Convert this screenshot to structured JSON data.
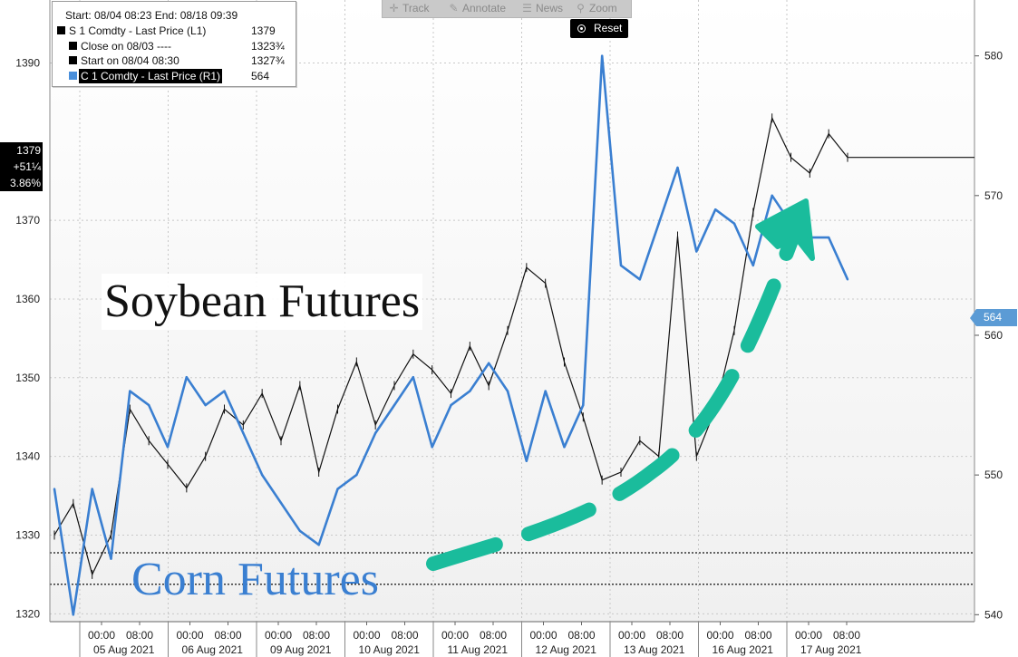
{
  "legend": {
    "header": "Start: 08/04 08:23 End: 08/18 09:39",
    "rows": [
      {
        "label": "S 1 Comdty - Last Price (L1)",
        "value": "1379",
        "color": "#000000"
      },
      {
        "label": "Close on 08/03 ----",
        "value": "1323¾",
        "color": "#000000"
      },
      {
        "label": "Start on 08/04 08:30",
        "value": "1327¾",
        "color": "#000000"
      },
      {
        "label": "C 1 Comdty - Last Price (R1)",
        "value": "564",
        "color": "#4a8fdb"
      }
    ]
  },
  "toolbar": {
    "items": [
      {
        "label": "Track",
        "icon": "crosshair-icon"
      },
      {
        "label": "Annotate",
        "icon": "pencil-icon"
      },
      {
        "label": "News",
        "icon": "news-icon"
      },
      {
        "label": "Zoom",
        "icon": "magnifier-icon"
      }
    ],
    "reset_label": "Reset"
  },
  "last_price_box": {
    "price": "1379",
    "change": "+51¼",
    "pct": "3.86%"
  },
  "right_tag": "564",
  "annotations": {
    "soybean": "Soybean Futures",
    "corn": "Corn Futures"
  },
  "colors": {
    "soybean": "#111111",
    "corn": "#3a7fd1",
    "arrow": "#1abc9c",
    "grid": "#c8c8c8"
  },
  "chart_data": {
    "type": "line",
    "x_axis": {
      "tick_labels": [
        "00:00",
        "08:00",
        "00:00",
        "08:00",
        "00:00",
        "08:00",
        "00:00",
        "08:00",
        "00:00",
        "08:00",
        "00:00",
        "08:00",
        "00:00",
        "08:00",
        "00:00",
        "08:00",
        "00:00",
        "08:00"
      ],
      "day_labels": [
        "05 Aug 2021",
        "06 Aug 2021",
        "09 Aug 2021",
        "10 Aug 2021",
        "11 Aug 2021",
        "12 Aug 2021",
        "13 Aug 2021",
        "16 Aug 2021",
        "17 Aug 2021"
      ]
    },
    "y_left": {
      "ticks": [
        1320,
        1330,
        1340,
        1350,
        1360,
        1370,
        1390
      ],
      "range": [
        1319,
        1398
      ]
    },
    "y_right": {
      "ticks": [
        540,
        550,
        560,
        570,
        580
      ],
      "range": [
        539.5,
        584
      ]
    },
    "reference_lines_left": [
      {
        "value": 1327.75
      },
      {
        "value": 1323.75
      }
    ],
    "series": [
      {
        "name": "S 1 Comdty - Last Price (L1)",
        "axis": "left",
        "x": [
          0,
          0.2,
          0.4,
          0.6,
          0.8,
          1,
          1.2,
          1.4,
          1.6,
          1.8,
          2,
          2.2,
          2.4,
          2.6,
          2.8,
          3,
          3.2,
          3.4,
          3.6,
          3.8,
          4,
          4.2,
          4.4,
          4.6,
          4.8,
          5,
          5.2,
          5.4,
          5.6,
          5.8,
          6,
          6.2,
          6.4,
          6.6,
          6.8,
          7,
          7.2,
          7.4,
          7.6,
          7.8,
          8,
          8.2,
          8.4
        ],
        "values": [
          1330,
          1334,
          1325,
          1330,
          1346,
          1342,
          1339,
          1336,
          1340,
          1346,
          1344,
          1348,
          1342,
          1349,
          1338,
          1346,
          1352,
          1344,
          1349,
          1353,
          1351,
          1348,
          1354,
          1349,
          1356,
          1364,
          1362,
          1352,
          1345,
          1337,
          1338,
          1342,
          1340,
          1368,
          1340,
          1346,
          1356,
          1371,
          1383,
          1378,
          1376,
          1381,
          1378
        ]
      },
      {
        "name": "C 1 Comdty - Last Price (R1)",
        "axis": "right",
        "x": [
          0,
          0.2,
          0.4,
          0.6,
          0.8,
          1,
          1.2,
          1.4,
          1.6,
          1.8,
          2,
          2.2,
          2.4,
          2.6,
          2.8,
          3,
          3.2,
          3.4,
          3.6,
          3.8,
          4,
          4.2,
          4.4,
          4.6,
          4.8,
          5,
          5.2,
          5.4,
          5.6,
          5.8,
          6,
          6.2,
          6.4,
          6.6,
          6.8,
          7,
          7.2,
          7.4,
          7.6,
          7.8,
          8,
          8.2,
          8.4
        ],
        "values": [
          549,
          540,
          549,
          544,
          556,
          555,
          552,
          557,
          555,
          556,
          553,
          550,
          548,
          546,
          545,
          549,
          550,
          553,
          555,
          557,
          552,
          555,
          556,
          558,
          556,
          551,
          556,
          552,
          555,
          580,
          565,
          564,
          568,
          572,
          566,
          569,
          568,
          565,
          570,
          568,
          567,
          567,
          564
        ]
      }
    ]
  }
}
